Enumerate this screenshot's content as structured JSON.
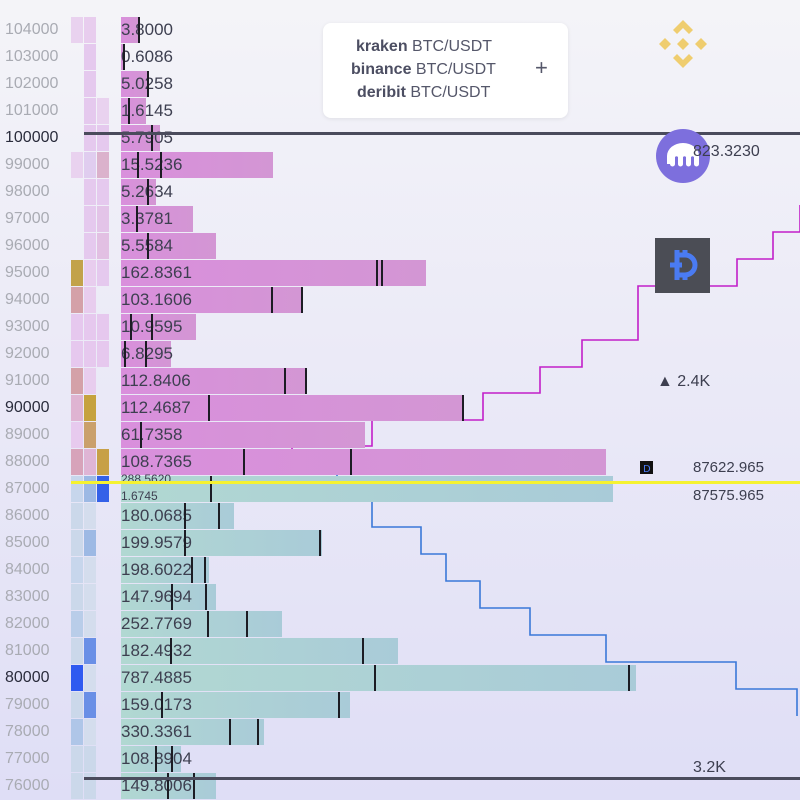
{
  "legend": {
    "items": [
      {
        "exchange": "kraken",
        "pair": "BTC/USDT"
      },
      {
        "exchange": "binance",
        "pair": "BTC/USDT"
      },
      {
        "exchange": "deribit",
        "pair": "BTC/USDT"
      }
    ],
    "add_label": "+"
  },
  "levels": [
    {
      "price": "104000",
      "volume": "3.8000",
      "side": "ask"
    },
    {
      "price": "103000",
      "volume": "0.6086",
      "side": "ask"
    },
    {
      "price": "102000",
      "volume": "5.0258",
      "side": "ask"
    },
    {
      "price": "101000",
      "volume": "1.6145",
      "side": "ask"
    },
    {
      "price": "100000",
      "volume": "5.7905",
      "side": "ask",
      "major": true
    },
    {
      "price": "99000",
      "volume": "15.5236",
      "side": "ask"
    },
    {
      "price": "98000",
      "volume": "5.2634",
      "side": "ask"
    },
    {
      "price": "97000",
      "volume": "3.3781",
      "side": "ask"
    },
    {
      "price": "96000",
      "volume": "5.5584",
      "side": "ask"
    },
    {
      "price": "95000",
      "volume": "162.8361",
      "side": "ask"
    },
    {
      "price": "94000",
      "volume": "103.1606",
      "side": "ask"
    },
    {
      "price": "93000",
      "volume": "10.9595",
      "side": "ask"
    },
    {
      "price": "92000",
      "volume": "6.8295",
      "side": "ask"
    },
    {
      "price": "91000",
      "volume": "112.8406",
      "side": "ask"
    },
    {
      "price": "90000",
      "volume": "112.4687",
      "side": "ask",
      "major": true
    },
    {
      "price": "89000",
      "volume": "61.7358",
      "side": "ask"
    },
    {
      "price": "88000",
      "volume": "108.7365",
      "side": "ask"
    },
    {
      "price": "87000",
      "volume": "288.5620",
      "volume2": "1.6745",
      "side": "bid"
    },
    {
      "price": "86000",
      "volume": "180.0685",
      "side": "bid"
    },
    {
      "price": "85000",
      "volume": "199.9579",
      "side": "bid"
    },
    {
      "price": "84000",
      "volume": "198.6022",
      "side": "bid"
    },
    {
      "price": "83000",
      "volume": "147.9694",
      "side": "bid"
    },
    {
      "price": "82000",
      "volume": "252.7769",
      "side": "bid"
    },
    {
      "price": "81000",
      "volume": "182.4932",
      "side": "bid"
    },
    {
      "price": "80000",
      "volume": "787.4885",
      "side": "bid",
      "major": true
    },
    {
      "price": "79000",
      "volume": "159.0173",
      "side": "bid"
    },
    {
      "price": "78000",
      "volume": "330.3361",
      "side": "bid"
    },
    {
      "price": "77000",
      "volume": "108.8904",
      "side": "bid"
    },
    {
      "price": "76000",
      "volume": "149.8006",
      "side": "bid"
    }
  ],
  "annotations": {
    "kraken_value": "823.3230",
    "ask_total": "▲ 2.4K",
    "bid_total": "3.2K",
    "mid_price_a": "87622.965",
    "mid_price_b": "87575.965"
  },
  "icons": [
    "binance-logo-icon",
    "kraken-logo-icon",
    "deribit-logo-icon"
  ],
  "colors": {
    "ask": "#d98fdc",
    "bid": "#b1d8d2",
    "ask_line": "#c21fc9",
    "bid_line": "#3a78d8",
    "mid_line": "#f5f230",
    "binance": "#f0c85a",
    "kraken": "#7b6fe0",
    "deribit_bg": "#4b4d55",
    "deribit_fg": "#4a7bf2"
  }
}
